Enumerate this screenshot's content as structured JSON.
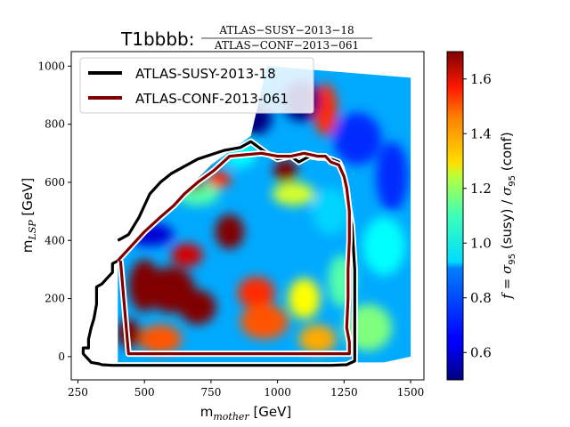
{
  "title": {
    "prefix": "T1bbbb:",
    "numerator": "ATLAS−SUSY−2013−18",
    "denominator": "ATLAS−CONF−2013−061"
  },
  "chart_data": {
    "type": "heatmap",
    "xlabel": "m_mother [GeV]",
    "xlabel_parts": {
      "m": "m",
      "sub": "mother",
      "unit": " [GeV]"
    },
    "ylabel": "m_LSP [GeV]",
    "ylabel_parts": {
      "m": "m",
      "sub": "LSP",
      "unit": " [GeV]"
    },
    "xlim": [
      225,
      1550
    ],
    "ylim": [
      -80,
      1050
    ],
    "xticks": [
      250,
      500,
      750,
      1000,
      1250,
      1500
    ],
    "yticks": [
      0,
      200,
      400,
      600,
      800,
      1000
    ],
    "colorbar": {
      "label": "f = σ_95 (susy) / σ_95 (conf)",
      "label_parts": [
        "f = ",
        "σ",
        "95",
        " (susy) / ",
        "σ",
        "95",
        " (conf)"
      ],
      "range": [
        0.5,
        1.7
      ],
      "ticks": [
        0.6,
        0.8,
        1.0,
        1.2,
        1.4,
        1.6
      ],
      "colormap": "jet"
    },
    "legend": {
      "placement": "top-left",
      "entries": [
        {
          "label": "ATLAS-SUSY-2013-18",
          "color": "#000000"
        },
        {
          "label": "ATLAS-CONF-2013-061",
          "color": "#800000"
        }
      ]
    },
    "data_region": [
      [
        400,
        330
      ],
      [
        750,
        660
      ],
      [
        900,
        760
      ],
      [
        960,
        1000
      ],
      [
        1500,
        960
      ],
      [
        1500,
        0
      ],
      [
        1400,
        -20
      ],
      [
        400,
        -20
      ]
    ],
    "background_value": 0.85,
    "blobs": [
      {
        "x": 500,
        "y": 245,
        "value": 1.75,
        "rx": 60,
        "ry": 90
      },
      {
        "x": 600,
        "y": 230,
        "value": 1.75,
        "rx": 90,
        "ry": 80
      },
      {
        "x": 700,
        "y": 170,
        "value": 1.75,
        "rx": 70,
        "ry": 60
      },
      {
        "x": 820,
        "y": 430,
        "value": 1.75,
        "rx": 55,
        "ry": 60
      },
      {
        "x": 660,
        "y": 350,
        "value": 1.6,
        "rx": 60,
        "ry": 40
      },
      {
        "x": 920,
        "y": 220,
        "value": 1.5,
        "rx": 70,
        "ry": 55
      },
      {
        "x": 950,
        "y": 120,
        "value": 1.45,
        "rx": 90,
        "ry": 60
      },
      {
        "x": 440,
        "y": 80,
        "value": 1.75,
        "rx": 45,
        "ry": 50
      },
      {
        "x": 560,
        "y": 60,
        "value": 1.45,
        "rx": 80,
        "ry": 50
      },
      {
        "x": 1100,
        "y": 200,
        "value": 1.25,
        "rx": 60,
        "ry": 70
      },
      {
        "x": 1150,
        "y": 60,
        "value": 1.35,
        "rx": 70,
        "ry": 50
      },
      {
        "x": 1240,
        "y": 260,
        "value": 1.05,
        "rx": 50,
        "ry": 90
      },
      {
        "x": 1030,
        "y": 640,
        "value": 1.75,
        "rx": 45,
        "ry": 40
      },
      {
        "x": 1180,
        "y": 850,
        "value": 1.5,
        "rx": 45,
        "ry": 90
      },
      {
        "x": 1060,
        "y": 560,
        "value": 1.2,
        "rx": 80,
        "ry": 40
      },
      {
        "x": 900,
        "y": 820,
        "value": 0.5,
        "rx": 80,
        "ry": 60
      },
      {
        "x": 1090,
        "y": 880,
        "value": 0.5,
        "rx": 70,
        "ry": 70
      },
      {
        "x": 1300,
        "y": 750,
        "value": 0.7,
        "rx": 90,
        "ry": 90
      },
      {
        "x": 1430,
        "y": 620,
        "value": 0.7,
        "rx": 60,
        "ry": 120
      },
      {
        "x": 1400,
        "y": 380,
        "value": 0.95,
        "rx": 80,
        "ry": 100
      },
      {
        "x": 1340,
        "y": 100,
        "value": 1.1,
        "rx": 90,
        "ry": 80
      },
      {
        "x": 520,
        "y": 420,
        "value": 0.6,
        "rx": 90,
        "ry": 40
      },
      {
        "x": 700,
        "y": 560,
        "value": 1.05,
        "rx": 80,
        "ry": 40
      },
      {
        "x": 780,
        "y": 610,
        "value": 1.5,
        "rx": 45,
        "ry": 30
      },
      {
        "x": 690,
        "y": 600,
        "value": 1.75,
        "rx": 30,
        "ry": 30
      },
      {
        "x": 1200,
        "y": 500,
        "value": 0.9,
        "rx": 70,
        "ry": 80
      },
      {
        "x": 860,
        "y": 700,
        "value": 0.95,
        "rx": 60,
        "ry": 50
      }
    ],
    "series": [
      {
        "name": "ATLAS-SUSY-2013-18",
        "color": "#000000",
        "x": [
          400,
          380,
          380,
          360,
          340,
          320,
          320,
          310,
          300,
          290,
          290,
          270,
          270,
          280,
          290,
          300,
          330,
          340,
          380,
          420,
          500,
          700,
          900,
          1000,
          1100,
          1200,
          1260,
          1290,
          1290,
          1290,
          1280,
          1260,
          1250,
          1240,
          1230,
          1200,
          1170,
          1150,
          1120,
          1080,
          1050,
          1000,
          960,
          900,
          860,
          800,
          700,
          600,
          560,
          520,
          480,
          440,
          400
        ],
        "y": [
          330,
          320,
          290,
          270,
          250,
          240,
          180,
          130,
          100,
          60,
          30,
          30,
          10,
          0,
          -10,
          -20,
          -25,
          -28,
          -30,
          -30,
          -30,
          -30,
          -30,
          -30,
          -30,
          -30,
          -28,
          -15,
          100,
          300,
          450,
          560,
          620,
          650,
          670,
          680,
          685,
          685,
          690,
          670,
          690,
          680,
          700,
          740,
          720,
          710,
          680,
          630,
          600,
          560,
          480,
          420,
          400
        ]
      },
      {
        "name": "ATLAS-CONF-2013-061",
        "color": "#800000",
        "x": [
          400,
          450,
          500,
          560,
          610,
          650,
          700,
          760,
          820,
          880,
          940,
          1000,
          1050,
          1100,
          1150,
          1180,
          1200,
          1230,
          1250,
          1260,
          1270,
          1270,
          1265,
          1265,
          1260,
          1270,
          1270,
          1260,
          1200,
          1150,
          1100,
          1060,
          1000,
          990,
          960,
          900,
          800,
          740,
          700,
          650,
          600,
          560,
          500,
          440,
          410
        ],
        "y": [
          330,
          380,
          430,
          480,
          520,
          560,
          600,
          640,
          690,
          695,
          700,
          690,
          690,
          700,
          690,
          690,
          670,
          660,
          620,
          580,
          500,
          400,
          300,
          200,
          100,
          50,
          10,
          10,
          10,
          10,
          10,
          10,
          10,
          10,
          10,
          10,
          10,
          10,
          10,
          10,
          10,
          10,
          10,
          10,
          330
        ]
      }
    ]
  }
}
